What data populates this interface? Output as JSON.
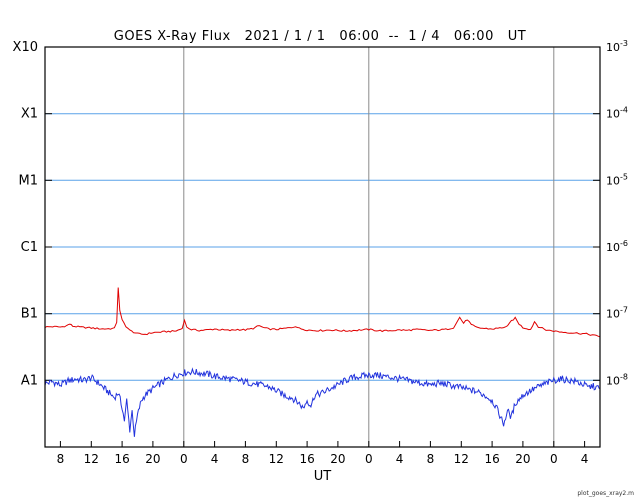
{
  "header": {
    "title_note": "title text lives in chart_data.title"
  },
  "footer": {
    "note": "plot_goes_xray2.m"
  },
  "chart_data": {
    "type": "line",
    "title": "GOES X-Ray Flux   2021 / 1 / 1   06:00  --  1 / 4   06:00   UT",
    "xlabel": "UT",
    "xlim_hours": [
      0,
      72
    ],
    "ylog10_lim": [
      -9,
      -3
    ],
    "grid_log10": [
      -4,
      -5,
      -6,
      -7,
      -8
    ],
    "day_boundaries_t": [
      18,
      42,
      66
    ],
    "x_ticks": [
      {
        "t": 2,
        "label": "8"
      },
      {
        "t": 6,
        "label": "12"
      },
      {
        "t": 10,
        "label": "16"
      },
      {
        "t": 14,
        "label": "20"
      },
      {
        "t": 18,
        "label": "0"
      },
      {
        "t": 22,
        "label": "4"
      },
      {
        "t": 26,
        "label": "8"
      },
      {
        "t": 30,
        "label": "12"
      },
      {
        "t": 34,
        "label": "16"
      },
      {
        "t": 38,
        "label": "20"
      },
      {
        "t": 42,
        "label": "0"
      },
      {
        "t": 46,
        "label": "4"
      },
      {
        "t": 50,
        "label": "8"
      },
      {
        "t": 54,
        "label": "12"
      },
      {
        "t": 58,
        "label": "16"
      },
      {
        "t": 62,
        "label": "20"
      },
      {
        "t": 66,
        "label": "0"
      },
      {
        "t": 70,
        "label": "4"
      }
    ],
    "y_left_labels": [
      {
        "log10": -3,
        "label": "X10"
      },
      {
        "log10": -4,
        "label": "X1"
      },
      {
        "log10": -5,
        "label": "M1"
      },
      {
        "log10": -6,
        "label": "C1"
      },
      {
        "log10": -7,
        "label": "B1"
      },
      {
        "log10": -8,
        "label": "A1"
      }
    ],
    "y_right_labels": [
      {
        "log10": -3,
        "base": "10",
        "exp": "-3"
      },
      {
        "log10": -4,
        "base": "10",
        "exp": "-4"
      },
      {
        "log10": -5,
        "base": "10",
        "exp": "-5"
      },
      {
        "log10": -6,
        "base": "10",
        "exp": "-6"
      },
      {
        "log10": -7,
        "base": "10",
        "exp": "-7"
      },
      {
        "log10": -8,
        "base": "10",
        "exp": "-8"
      }
    ],
    "colors": {
      "grid": "#5aa2e8",
      "day_line": "#8a8a8a",
      "frame": "#000000",
      "red_series": "#e00000",
      "blue_series": "#2233dd",
      "text": "#000000"
    },
    "series": [
      {
        "name": "blue",
        "color": "#2233dd",
        "noise_log10": 0.05,
        "subdivide_per_hour": 8,
        "points": [
          [
            0,
            9e-09
          ],
          [
            1,
            9.5e-09
          ],
          [
            2,
            8.5e-09
          ],
          [
            3,
            9.8e-09
          ],
          [
            4,
            1.05e-08
          ],
          [
            5,
            1e-08
          ],
          [
            6,
            1.1e-08
          ],
          [
            7,
            9e-09
          ],
          [
            8,
            7e-09
          ],
          [
            9,
            5.5e-09
          ],
          [
            9.5,
            6.5e-09
          ],
          [
            10,
            4e-09
          ],
          [
            10.3,
            2.5e-09
          ],
          [
            10.6,
            5e-09
          ],
          [
            11,
            1.8e-09
          ],
          [
            11.3,
            3.5e-09
          ],
          [
            11.6,
            1.5e-09
          ],
          [
            12,
            3e-09
          ],
          [
            12.5,
            5e-09
          ],
          [
            13,
            6e-09
          ],
          [
            14,
            7.5e-09
          ],
          [
            15,
            9e-09
          ],
          [
            16,
            1.05e-08
          ],
          [
            17,
            1.2e-08
          ],
          [
            18,
            1.3e-08
          ],
          [
            19,
            1.35e-08
          ],
          [
            20,
            1.3e-08
          ],
          [
            21,
            1.25e-08
          ],
          [
            22,
            1.15e-08
          ],
          [
            23,
            1.1e-08
          ],
          [
            24,
            1.05e-08
          ],
          [
            25,
            1e-08
          ],
          [
            26,
            9.5e-09
          ],
          [
            27,
            9e-09
          ],
          [
            28,
            8.5e-09
          ],
          [
            29,
            8e-09
          ],
          [
            30,
            7e-09
          ],
          [
            31,
            6e-09
          ],
          [
            32,
            5.5e-09
          ],
          [
            33,
            4.5e-09
          ],
          [
            33.5,
            3.8e-09
          ],
          [
            34,
            5e-09
          ],
          [
            34.5,
            4.2e-09
          ],
          [
            35,
            6e-09
          ],
          [
            36,
            6.5e-09
          ],
          [
            37,
            7.5e-09
          ],
          [
            38,
            8.5e-09
          ],
          [
            39,
            1e-08
          ],
          [
            40,
            1.1e-08
          ],
          [
            41,
            1.15e-08
          ],
          [
            42,
            1.2e-08
          ],
          [
            43,
            1.2e-08
          ],
          [
            44,
            1.15e-08
          ],
          [
            45,
            1.1e-08
          ],
          [
            46,
            1.05e-08
          ],
          [
            47,
            1e-08
          ],
          [
            48,
            9.5e-09
          ],
          [
            49,
            9e-09
          ],
          [
            50,
            8.5e-09
          ],
          [
            51,
            9e-09
          ],
          [
            52,
            8.8e-09
          ],
          [
            53,
            8.2e-09
          ],
          [
            54,
            7.8e-09
          ],
          [
            55,
            7.2e-09
          ],
          [
            56,
            6.8e-09
          ],
          [
            57,
            6e-09
          ],
          [
            58,
            5e-09
          ],
          [
            58.5,
            4e-09
          ],
          [
            59,
            3e-09
          ],
          [
            59.5,
            2.2e-09
          ],
          [
            60,
            3.5e-09
          ],
          [
            60.5,
            2.8e-09
          ],
          [
            61,
            4.5e-09
          ],
          [
            62,
            6e-09
          ],
          [
            63,
            7e-09
          ],
          [
            64,
            8e-09
          ],
          [
            65,
            9e-09
          ],
          [
            66,
            1e-08
          ],
          [
            67,
            1.05e-08
          ],
          [
            68,
            1e-08
          ],
          [
            69,
            9.5e-09
          ],
          [
            70,
            8.5e-09
          ],
          [
            70.5,
            7.8e-09
          ],
          [
            71,
            8.2e-09
          ],
          [
            72,
            7.5e-09
          ]
        ]
      },
      {
        "name": "red",
        "color": "#e00000",
        "noise_log10": 0.012,
        "subdivide_per_hour": 4,
        "points": [
          [
            0,
            6.3e-08
          ],
          [
            1,
            6.4e-08
          ],
          [
            2,
            6.3e-08
          ],
          [
            2.8,
            6.6e-08
          ],
          [
            3.2,
            7e-08
          ],
          [
            3.6,
            6.5e-08
          ],
          [
            4.5,
            6.3e-08
          ],
          [
            6,
            6.1e-08
          ],
          [
            7.5,
            5.9e-08
          ],
          [
            9,
            6e-08
          ],
          [
            9.3,
            7.5e-08
          ],
          [
            9.5,
            2.5e-07
          ],
          [
            9.7,
            1.1e-07
          ],
          [
            10,
            8e-08
          ],
          [
            10.5,
            6.5e-08
          ],
          [
            11,
            5.6e-08
          ],
          [
            12,
            5e-08
          ],
          [
            13,
            4.9e-08
          ],
          [
            14,
            5.2e-08
          ],
          [
            15,
            5.3e-08
          ],
          [
            16,
            5.4e-08
          ],
          [
            17,
            5.5e-08
          ],
          [
            17.8,
            6e-08
          ],
          [
            18.1,
            8.2e-08
          ],
          [
            18.4,
            6.2e-08
          ],
          [
            19,
            5.8e-08
          ],
          [
            20,
            5.6e-08
          ],
          [
            21,
            5.7e-08
          ],
          [
            22,
            5.9e-08
          ],
          [
            23,
            5.7e-08
          ],
          [
            24,
            5.6e-08
          ],
          [
            25,
            5.8e-08
          ],
          [
            26,
            5.7e-08
          ],
          [
            27,
            6e-08
          ],
          [
            27.8,
            6.6e-08
          ],
          [
            28.3,
            6.2e-08
          ],
          [
            29,
            5.9e-08
          ],
          [
            30,
            5.8e-08
          ],
          [
            31,
            6e-08
          ],
          [
            32,
            6.2e-08
          ],
          [
            32.5,
            6.5e-08
          ],
          [
            33,
            6e-08
          ],
          [
            34,
            5.7e-08
          ],
          [
            35,
            5.6e-08
          ],
          [
            36,
            5.6e-08
          ],
          [
            37,
            5.7e-08
          ],
          [
            38,
            5.6e-08
          ],
          [
            39,
            5.5e-08
          ],
          [
            40,
            5.6e-08
          ],
          [
            41,
            5.7e-08
          ],
          [
            42,
            5.8e-08
          ],
          [
            43,
            5.6e-08
          ],
          [
            44,
            5.5e-08
          ],
          [
            45,
            5.6e-08
          ],
          [
            46,
            5.7e-08
          ],
          [
            47,
            5.6e-08
          ],
          [
            48,
            5.8e-08
          ],
          [
            49,
            5.7e-08
          ],
          [
            50,
            5.6e-08
          ],
          [
            51,
            5.7e-08
          ],
          [
            52,
            5.8e-08
          ],
          [
            53,
            6.2e-08
          ],
          [
            53.8,
            8.8e-08
          ],
          [
            54.3,
            7.2e-08
          ],
          [
            54.8,
            8.2e-08
          ],
          [
            55.3,
            6.8e-08
          ],
          [
            56,
            6.2e-08
          ],
          [
            57,
            6e-08
          ],
          [
            58,
            5.9e-08
          ],
          [
            59,
            6.1e-08
          ],
          [
            60,
            6.4e-08
          ],
          [
            60.5,
            7.8e-08
          ],
          [
            61,
            8.6e-08
          ],
          [
            61.5,
            7e-08
          ],
          [
            62,
            6.2e-08
          ],
          [
            63,
            5.8e-08
          ],
          [
            63.5,
            7.6e-08
          ],
          [
            64,
            6.4e-08
          ],
          [
            65,
            5.7e-08
          ],
          [
            66,
            5.5e-08
          ],
          [
            67,
            5.3e-08
          ],
          [
            68,
            5.2e-08
          ],
          [
            69,
            5.1e-08
          ],
          [
            70,
            5e-08
          ],
          [
            71,
            4.8e-08
          ],
          [
            72,
            4.5e-08
          ]
        ]
      }
    ]
  }
}
